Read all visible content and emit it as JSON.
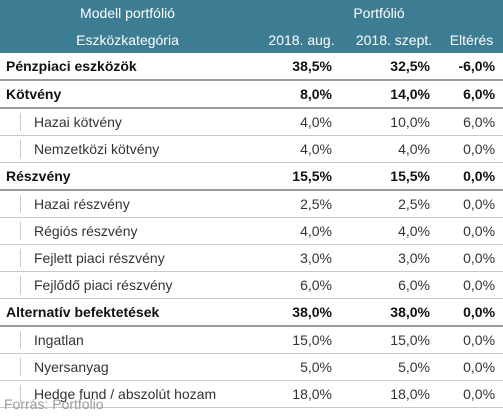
{
  "header": {
    "row1": {
      "model": "Modell portfólió",
      "portfolio": "Portfólió"
    },
    "row2": {
      "category": "Eszközkategória",
      "aug": "2018. aug.",
      "sept": "2018. szept.",
      "diff": "Eltérés"
    }
  },
  "rows": [
    {
      "type": "group",
      "name": "Pénzpiaci eszközök",
      "aug": "38,5%",
      "sept": "32,5%",
      "diff": "-6,0%"
    },
    {
      "type": "group",
      "name": "Kötvény",
      "aug": "8,0%",
      "sept": "14,0%",
      "diff": "6,0%"
    },
    {
      "type": "sub",
      "name": "Hazai kötvény",
      "aug": "4,0%",
      "sept": "10,0%",
      "diff": "6,0%"
    },
    {
      "type": "sub",
      "name": "Nemzetközi kötvény",
      "aug": "4,0%",
      "sept": "4,0%",
      "diff": "0,0%"
    },
    {
      "type": "group",
      "name": "Részvény",
      "aug": "15,5%",
      "sept": "15,5%",
      "diff": "0,0%"
    },
    {
      "type": "sub",
      "name": "Hazai részvény",
      "aug": "2,5%",
      "sept": "2,5%",
      "diff": "0,0%"
    },
    {
      "type": "sub",
      "name": "Régiós részvény",
      "aug": "4,0%",
      "sept": "4,0%",
      "diff": "0,0%"
    },
    {
      "type": "sub",
      "name": "Fejlett piaci részvény",
      "aug": "3,0%",
      "sept": "3,0%",
      "diff": "0,0%"
    },
    {
      "type": "sub",
      "name": "Fejlődő piaci részvény",
      "aug": "6,0%",
      "sept": "6,0%",
      "diff": "0,0%"
    },
    {
      "type": "group",
      "name": "Alternatív befektetések",
      "aug": "38,0%",
      "sept": "38,0%",
      "diff": "0,0%"
    },
    {
      "type": "sub",
      "name": "Ingatlan",
      "aug": "15,0%",
      "sept": "15,0%",
      "diff": "0,0%"
    },
    {
      "type": "sub",
      "name": "Nyersanyag",
      "aug": "5,0%",
      "sept": "5,0%",
      "diff": "0,0%"
    },
    {
      "type": "sub",
      "name": "Hedge fund / abszolút hozam",
      "aug": "18,0%",
      "sept": "18,0%",
      "diff": "0,0%"
    }
  ],
  "source": "Forrás: Portfolio",
  "colors": {
    "header_bg": "#3c7d93",
    "header_text": "#ffffff",
    "source_text": "#9a9a9a"
  }
}
